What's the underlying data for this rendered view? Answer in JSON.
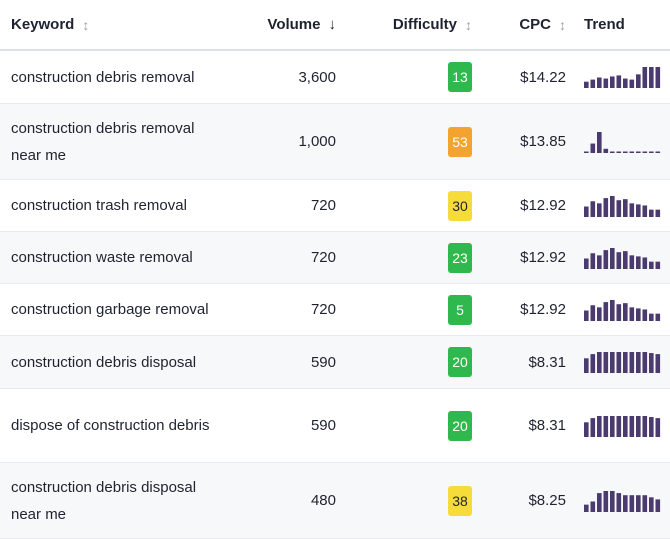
{
  "header": {
    "keyword": "Keyword",
    "volume": "Volume",
    "difficulty": "Difficulty",
    "cpc": "CPC",
    "trend": "Trend",
    "sort_both_icon": "↕",
    "sort_desc_icon": "↓"
  },
  "colors": {
    "easy": "#2fb84d",
    "medium": "#f6dc3a",
    "hard": "#f3a32f",
    "trend_bar": "#4b3a6e"
  },
  "rows": [
    {
      "keyword": "construction debris removal",
      "volume": "3,600",
      "difficulty": "13",
      "difficulty_level": "easy",
      "cpc": "$14.22",
      "trend": [
        0.3,
        0.4,
        0.5,
        0.45,
        0.55,
        0.6,
        0.45,
        0.4,
        0.65,
        1.0,
        1.0,
        1.0
      ]
    },
    {
      "keyword": "construction debris removal near me",
      "volume": "1,000",
      "difficulty": "53",
      "difficulty_level": "hard",
      "cpc": "$13.85",
      "trend": [
        0.05,
        0.45,
        1.0,
        0.2,
        0.05,
        0.05,
        0.05,
        0.05,
        0.05,
        0.05,
        0.05,
        0.05
      ]
    },
    {
      "keyword": "construction trash removal",
      "volume": "720",
      "difficulty": "30",
      "difficulty_level": "medium",
      "cpc": "$12.92",
      "trend": [
        0.5,
        0.75,
        0.65,
        0.9,
        1.0,
        0.8,
        0.85,
        0.65,
        0.6,
        0.55,
        0.35,
        0.35
      ]
    },
    {
      "keyword": "construction waste removal",
      "volume": "720",
      "difficulty": "23",
      "difficulty_level": "easy",
      "cpc": "$12.92",
      "trend": [
        0.5,
        0.75,
        0.65,
        0.9,
        1.0,
        0.8,
        0.85,
        0.65,
        0.6,
        0.55,
        0.35,
        0.35
      ]
    },
    {
      "keyword": "construction garbage removal",
      "volume": "720",
      "difficulty": "5",
      "difficulty_level": "easy",
      "cpc": "$12.92",
      "trend": [
        0.5,
        0.75,
        0.65,
        0.9,
        1.0,
        0.8,
        0.85,
        0.65,
        0.6,
        0.55,
        0.35,
        0.35
      ]
    },
    {
      "keyword": "construction debris disposal",
      "volume": "590",
      "difficulty": "20",
      "difficulty_level": "easy",
      "cpc": "$8.31",
      "trend": [
        0.7,
        0.9,
        1.0,
        1.0,
        1.0,
        1.0,
        1.0,
        1.0,
        1.0,
        1.0,
        0.95,
        0.9
      ]
    },
    {
      "keyword": "dispose of construction debris",
      "volume": "590",
      "difficulty": "20",
      "difficulty_level": "easy",
      "cpc": "$8.31",
      "trend": [
        0.7,
        0.9,
        1.0,
        1.0,
        1.0,
        1.0,
        1.0,
        1.0,
        1.0,
        1.0,
        0.95,
        0.9
      ]
    },
    {
      "keyword": "construction debris disposal near me",
      "volume": "480",
      "difficulty": "38",
      "difficulty_level": "medium",
      "cpc": "$8.25",
      "trend": [
        0.35,
        0.5,
        0.9,
        1.0,
        1.0,
        0.9,
        0.8,
        0.8,
        0.8,
        0.8,
        0.7,
        0.6
      ]
    }
  ]
}
